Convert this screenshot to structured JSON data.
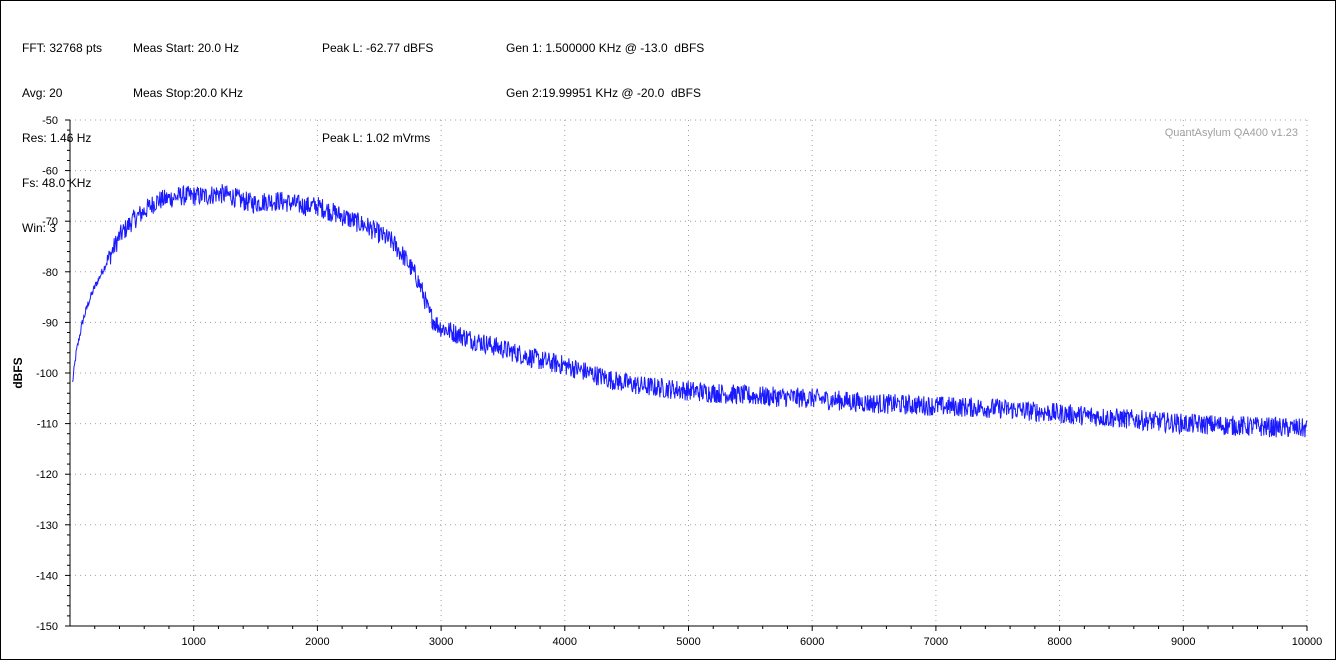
{
  "header": {
    "col1": [
      "FFT: 32768 pts",
      "Avg: 20",
      "Res: 1.46 Hz",
      "Fs: 48.0 KHz",
      "Win: 3"
    ],
    "col2": [
      "Meas Start: 20.0 Hz",
      "Meas Stop:20.0 KHz"
    ],
    "col3": [
      "Peak L: -62.77 dBFS",
      "Peak L: 1.02 mVrms"
    ],
    "col4": [
      "Gen 1: 1.500000 KHz @ -13.0  dBFS",
      "Gen 2:19.99951 KHz @ -20.0  dBFS"
    ]
  },
  "watermark": "QuantAsylum QA400 v1.23",
  "colors": {
    "trace": "#1a1aff",
    "grid": "#a0a0a0",
    "watermark": "#a0a0a0"
  },
  "chart_data": {
    "type": "line",
    "xlabel": "",
    "ylabel": "dBFS",
    "xlim": [
      0,
      10000
    ],
    "ylim": [
      -150,
      -50
    ],
    "x_ticks": [
      1000,
      2000,
      3000,
      4000,
      5000,
      6000,
      7000,
      8000,
      9000,
      10000
    ],
    "y_ticks": [
      -50,
      -60,
      -70,
      -80,
      -90,
      -100,
      -110,
      -120,
      -130,
      -140,
      -150
    ],
    "grid": true,
    "series": [
      {
        "color": "#1a1aff",
        "x": [
          20,
          50,
          100,
          150,
          200,
          300,
          400,
          500,
          600,
          700,
          800,
          900,
          1000,
          1100,
          1200,
          1300,
          1400,
          1500,
          1600,
          1700,
          1800,
          1900,
          2000,
          2100,
          2200,
          2300,
          2400,
          2500,
          2600,
          2700,
          2800,
          2850,
          2900,
          2950,
          3000,
          3100,
          3200,
          3400,
          3600,
          3800,
          4000,
          4200,
          4400,
          4600,
          4800,
          5000,
          5500,
          6000,
          6500,
          7000,
          7500,
          8000,
          8500,
          9000,
          9500,
          10000
        ],
        "values": [
          -102,
          -96,
          -90,
          -86,
          -83,
          -78,
          -73,
          -70,
          -68,
          -66,
          -65.5,
          -65,
          -65,
          -65,
          -64.5,
          -65,
          -66,
          -66.5,
          -66,
          -66,
          -66.5,
          -67,
          -67,
          -68,
          -69,
          -70,
          -71,
          -72.5,
          -74,
          -77,
          -81,
          -84,
          -88,
          -90,
          -91,
          -92,
          -93,
          -94.5,
          -96,
          -97.5,
          -98.5,
          -100,
          -101.5,
          -102.5,
          -103,
          -103.5,
          -104.5,
          -105,
          -106,
          -106.5,
          -107,
          -108,
          -109,
          -110,
          -110.5,
          -111
        ]
      }
    ]
  }
}
